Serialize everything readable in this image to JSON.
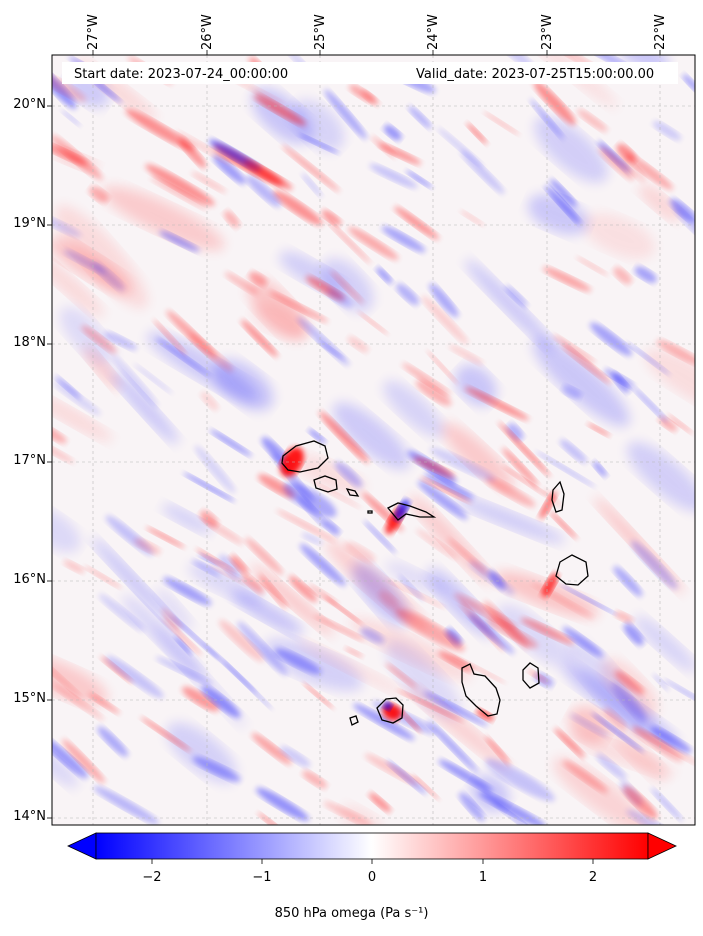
{
  "header": {
    "start_date": "Start date: 2023-07-24_00:00:00",
    "valid_date": "Valid_date: 2023-07-25T15:00:00.00"
  },
  "map": {
    "lon_ticks": [
      "27°W",
      "26°W",
      "25°W",
      "24°W",
      "23°W",
      "22°W"
    ],
    "lat_ticks": [
      "20°N",
      "19°N",
      "18°N",
      "17°N",
      "16°N",
      "15°N",
      "14°N"
    ],
    "extent": {
      "lon": [
        -27.3,
        -21.7
      ],
      "lat": [
        13.95,
        20.4
      ]
    },
    "field": "850 hPa omega",
    "islands": [
      "Santo Antão",
      "São Vicente",
      "São Nicolau",
      "Sal",
      "Boa Vista",
      "Maio",
      "Santiago",
      "Fogo",
      "Brava",
      "Santa Luzia"
    ]
  },
  "colorbar": {
    "ticks": [
      "−2",
      "−1",
      "0",
      "1",
      "2"
    ],
    "range": [
      -2.6,
      2.6
    ],
    "cmap": "bwr",
    "colors": {
      "negative": "#0000ff",
      "zero": "#ffffff",
      "positive": "#ff0000"
    },
    "label": "850 hPa omega (Pa s⁻¹)",
    "extend": "both"
  }
}
